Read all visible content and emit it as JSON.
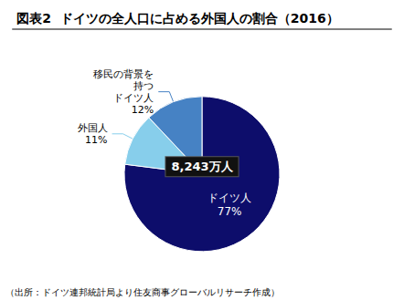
{
  "chart_data": {
    "type": "pie",
    "title": "図表2  ドイツの全人口に占める外国人の割合（2016）",
    "values": [
      77,
      11,
      12
    ],
    "value_labels": [
      "ドイツ人\n77%",
      "外国人\n11%",
      "移民の背景を\n持つ\nドイツ人\n12%"
    ],
    "colors": [
      "#0d0d6b",
      "#87ceeb",
      "#4682c4"
    ],
    "annotations": [
      "8,243万人",
      "（出所：ドイツ連邦統計局より住友商事グローバルリサーチ作成）"
    ],
    "data_labels": true
  }
}
